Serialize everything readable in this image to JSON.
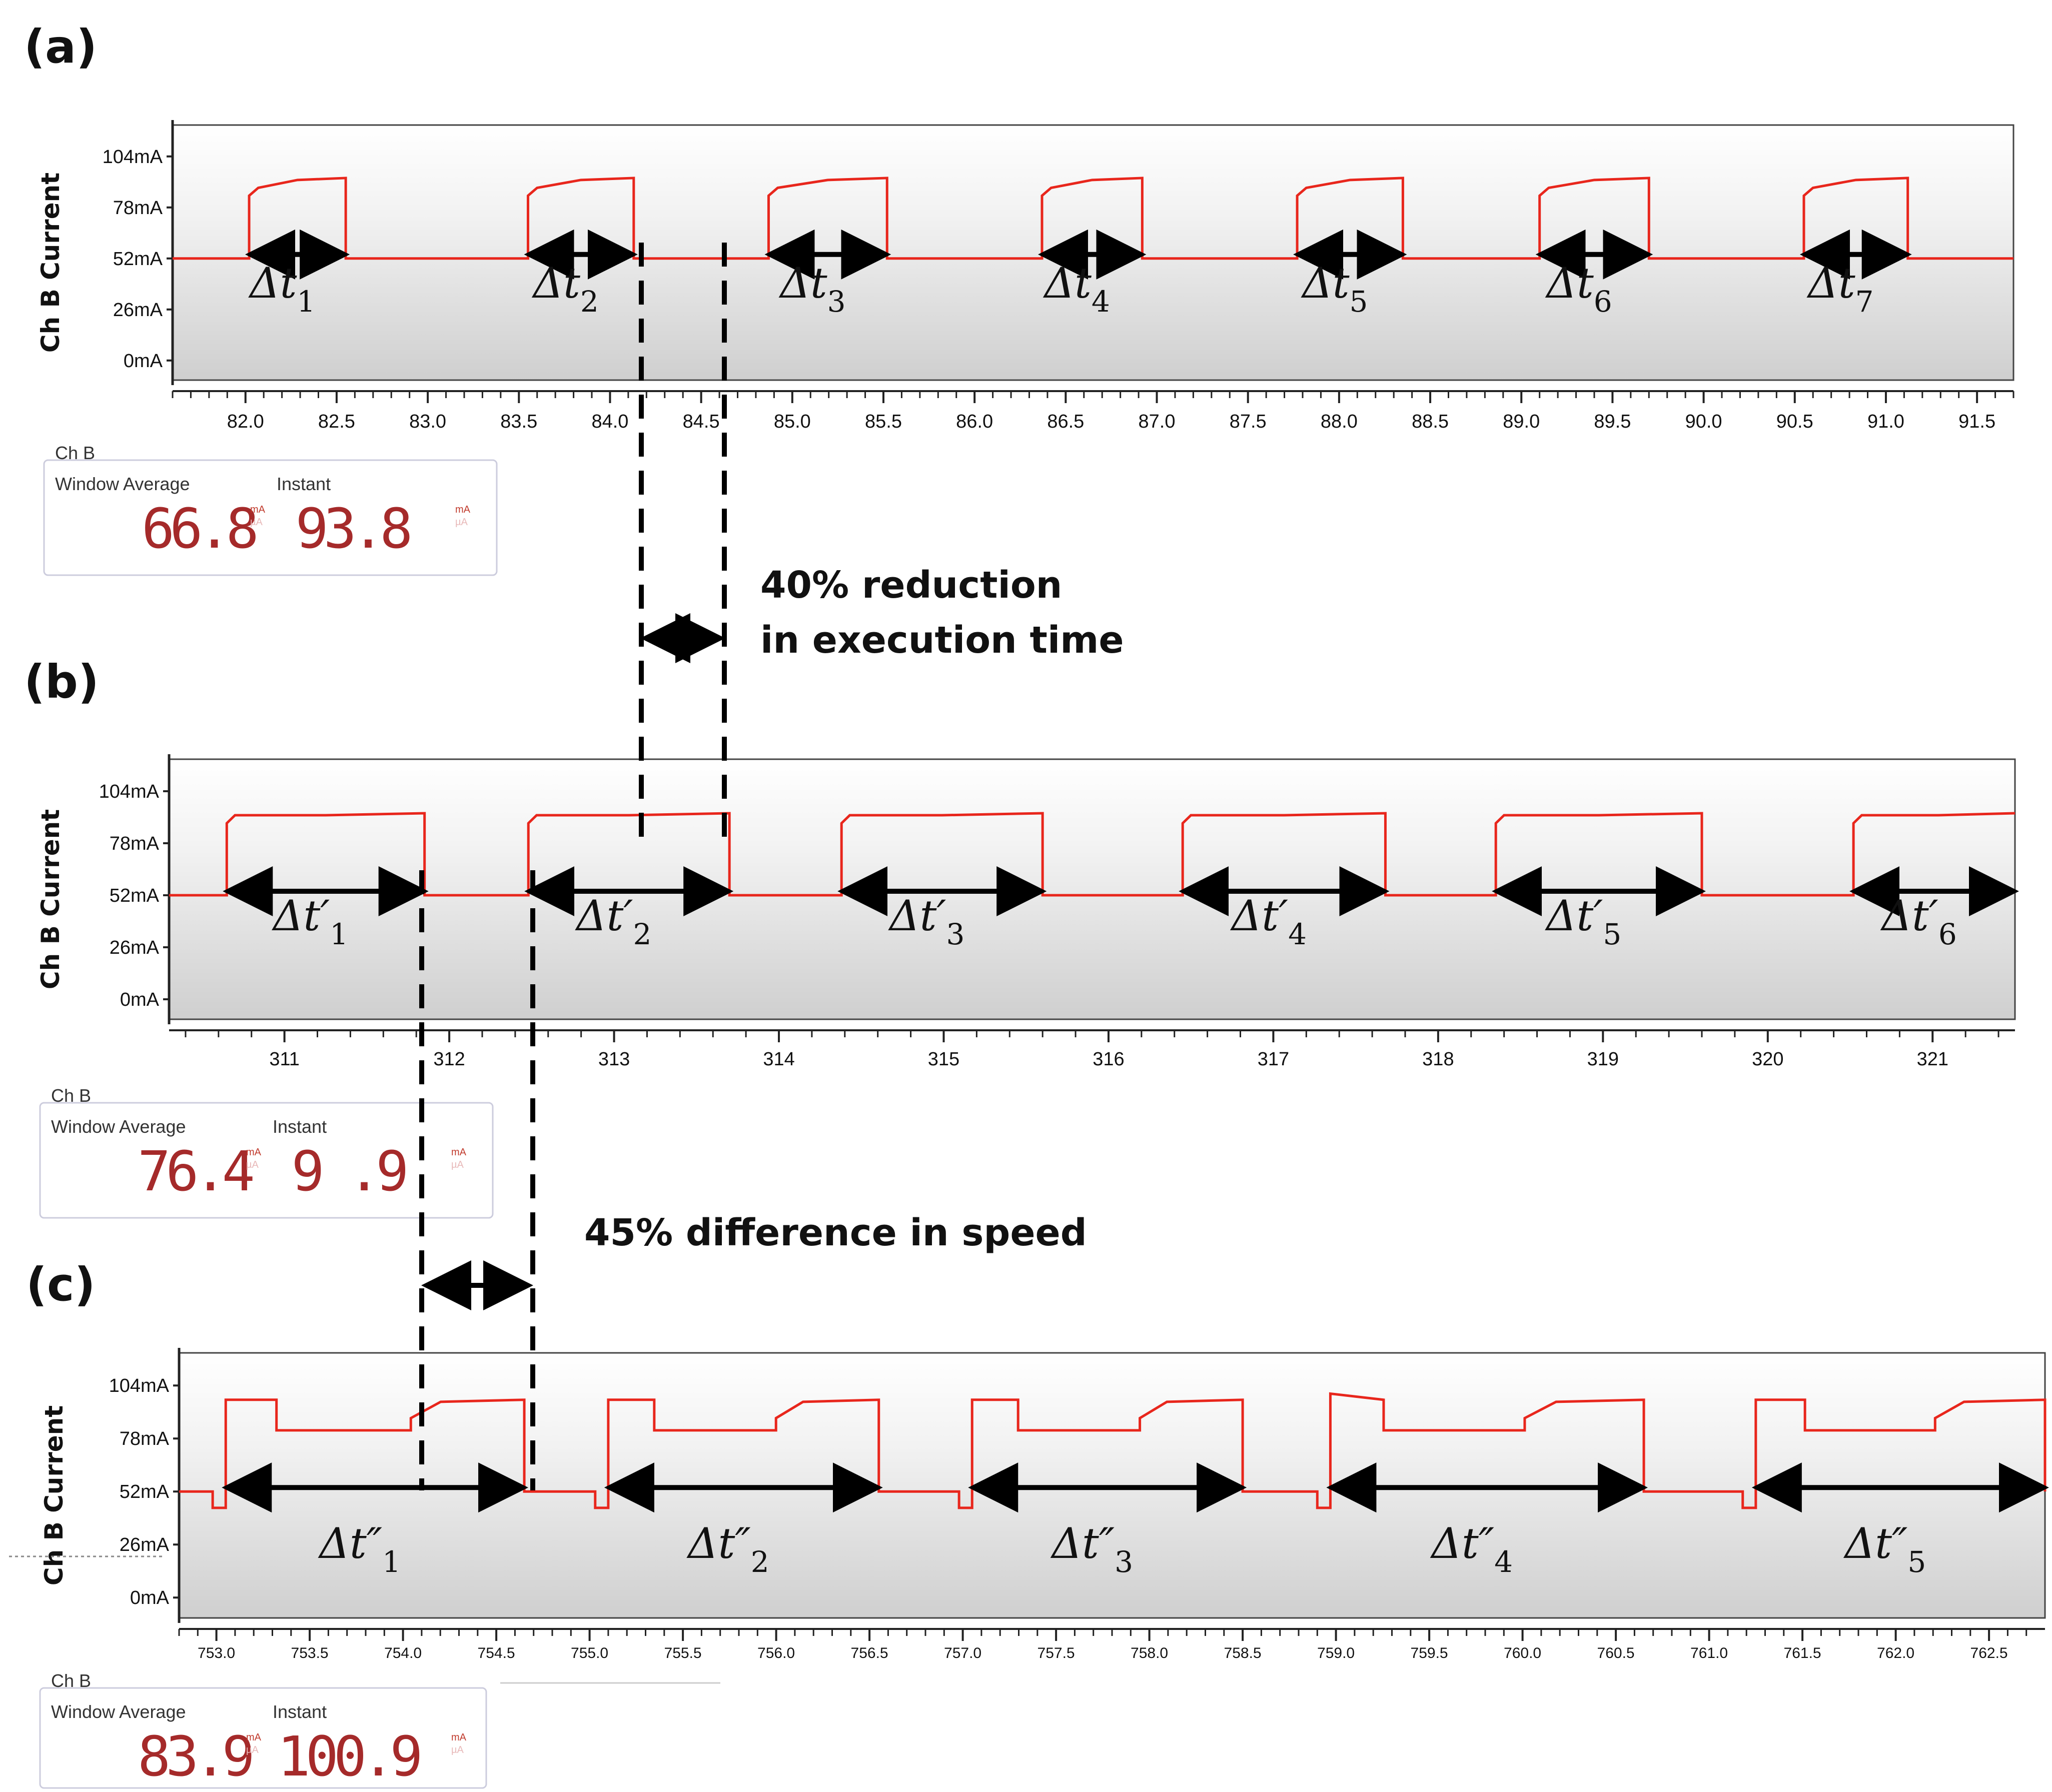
{
  "colors": {
    "trace": "#e8261c",
    "arrow": "#000000",
    "plot_bg_top": "#ffffff",
    "plot_bg_bottom": "#d2d2d2",
    "digit": "#a52a2a"
  },
  "annotations": {
    "reduction_line1": "40% reduction",
    "reduction_line2": "in execution time",
    "speed_diff": "45% difference in speed"
  },
  "chart_data": [
    {
      "type": "line",
      "panel": "(a)",
      "ylabel": "Ch B Current",
      "yticks": [
        "104mA",
        "78mA",
        "52mA",
        "26mA",
        "0mA"
      ],
      "ylim_mA": [
        -10,
        120
      ],
      "xlim": [
        81.6,
        91.7
      ],
      "xticks": [
        "82.0",
        "82.5",
        "83.0",
        "83.5",
        "84.0",
        "84.5",
        "85.0",
        "85.5",
        "86.0",
        "86.5",
        "87.0",
        "87.5",
        "88.0",
        "88.5",
        "89.0",
        "89.5",
        "90.0",
        "90.5",
        "91.0",
        "91.5"
      ],
      "baseline_mA": 52,
      "pulses": [
        {
          "start": 82.02,
          "end": 82.55,
          "rise_mA": 84,
          "top_mA": 93,
          "label": "1"
        },
        {
          "start": 83.55,
          "end": 84.13,
          "rise_mA": 84,
          "top_mA": 93,
          "label": "2"
        },
        {
          "start": 84.87,
          "end": 85.52,
          "rise_mA": 84,
          "top_mA": 93,
          "label": "3"
        },
        {
          "start": 86.37,
          "end": 86.92,
          "rise_mA": 84,
          "top_mA": 93,
          "label": "4"
        },
        {
          "start": 87.77,
          "end": 88.35,
          "rise_mA": 84,
          "top_mA": 93,
          "label": "5"
        },
        {
          "start": 89.1,
          "end": 89.7,
          "rise_mA": 84,
          "top_mA": 93,
          "label": "6"
        },
        {
          "start": 90.55,
          "end": 91.12,
          "rise_mA": 84,
          "top_mA": 93,
          "label": "7"
        }
      ],
      "delta_prefix": "Δt",
      "meter": {
        "channel": "Ch B",
        "avg_label": "Window Average",
        "inst_label": "Instant",
        "avg_value": "66.8",
        "inst_value": "93.8",
        "unit": "mA",
        "unit_faint": "µA"
      }
    },
    {
      "type": "line",
      "panel": "(b)",
      "ylabel": "Ch B Current",
      "yticks": [
        "104mA",
        "78mA",
        "52mA",
        "26mA",
        "0mA"
      ],
      "ylim_mA": [
        -10,
        120
      ],
      "xlim": [
        310.3,
        321.5
      ],
      "xticks": [
        "311",
        "312",
        "313",
        "314",
        "315",
        "316",
        "317",
        "318",
        "319",
        "320",
        "321"
      ],
      "baseline_mA": 52,
      "pulses": [
        {
          "start": 310.65,
          "end": 311.85,
          "rise_mA": 88,
          "top_mA": 93,
          "label": "1"
        },
        {
          "start": 312.48,
          "end": 313.7,
          "rise_mA": 88,
          "top_mA": 93,
          "label": "2"
        },
        {
          "start": 314.38,
          "end": 315.6,
          "rise_mA": 88,
          "top_mA": 93,
          "label": "3"
        },
        {
          "start": 316.45,
          "end": 317.68,
          "rise_mA": 88,
          "top_mA": 93,
          "label": "4"
        },
        {
          "start": 318.35,
          "end": 319.6,
          "rise_mA": 88,
          "top_mA": 93,
          "label": "5"
        },
        {
          "start": 320.52,
          "end": 321.55,
          "rise_mA": 88,
          "top_mA": 93,
          "label": "6"
        }
      ],
      "delta_prefix": "Δt′",
      "meter": {
        "channel": "Ch B",
        "avg_label": "Window Average",
        "inst_label": "Instant",
        "avg_value": "76.4",
        "inst_value": "9 .9",
        "unit": "mA",
        "unit_faint": "µA"
      }
    },
    {
      "type": "line",
      "panel": "(c)",
      "ylabel": "Ch B Current",
      "yticks": [
        "104mA",
        "78mA",
        "52mA",
        "26mA",
        "0mA"
      ],
      "ylim_mA": [
        -10,
        120
      ],
      "xlim": [
        752.8,
        762.8
      ],
      "xticks": [
        "753.0",
        "753.5",
        "754.0",
        "754.5",
        "755.0",
        "755.5",
        "756.0",
        "756.5",
        "757.0",
        "757.5",
        "758.0",
        "758.5",
        "759.0",
        "759.5",
        "760.0",
        "760.5",
        "761.0",
        "761.5",
        "762.0",
        "762.5"
      ],
      "baseline_mA": 52,
      "pulses": [
        {
          "start": 753.05,
          "end": 754.65,
          "rise_mA": 97,
          "mid_mA": 82,
          "top_mA": 97,
          "label": "1"
        },
        {
          "start": 755.1,
          "end": 756.55,
          "rise_mA": 97,
          "mid_mA": 82,
          "top_mA": 97,
          "label": "2"
        },
        {
          "start": 757.05,
          "end": 758.5,
          "rise_mA": 97,
          "mid_mA": 82,
          "top_mA": 97,
          "label": "3"
        },
        {
          "start": 758.97,
          "end": 760.65,
          "rise_mA": 100,
          "mid_mA": 82,
          "top_mA": 97,
          "label": "4"
        },
        {
          "start": 761.25,
          "end": 762.8,
          "rise_mA": 97,
          "mid_mA": 82,
          "top_mA": 97,
          "label": "5"
        }
      ],
      "delta_prefix": "Δt″",
      "meter": {
        "channel": "Ch B",
        "avg_label": "Window Average",
        "inst_label": "Instant",
        "avg_value": "83.9",
        "inst_value": "100.9",
        "unit": "mA",
        "unit_faint": "µA"
      }
    }
  ]
}
